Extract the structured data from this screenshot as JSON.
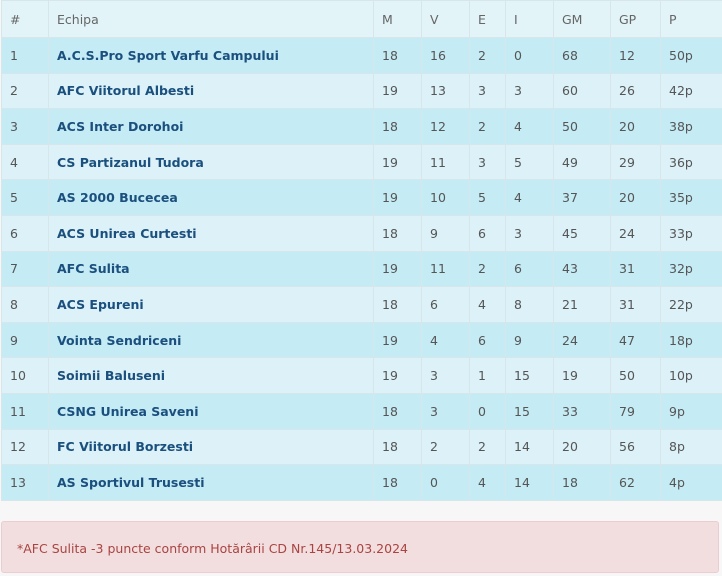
{
  "headers": [
    "#",
    "Echipa",
    "M",
    "V",
    "E",
    "I",
    "GM",
    "GP",
    "P"
  ],
  "rows": [
    [
      "1",
      "A.C.S.Pro Sport Varfu Campului",
      "18",
      "16",
      "2",
      "0",
      "68",
      "12",
      "50p"
    ],
    [
      "2",
      "AFC Viitorul Albesti",
      "19",
      "13",
      "3",
      "3",
      "60",
      "26",
      "42p"
    ],
    [
      "3",
      "ACS Inter Dorohoi",
      "18",
      "12",
      "2",
      "4",
      "50",
      "20",
      "38p"
    ],
    [
      "4",
      "CS Partizanul Tudora",
      "19",
      "11",
      "3",
      "5",
      "49",
      "29",
      "36p"
    ],
    [
      "5",
      "AS 2000 Bucecea",
      "19",
      "10",
      "5",
      "4",
      "37",
      "20",
      "35p"
    ],
    [
      "6",
      "ACS Unirea Curtesti",
      "18",
      "9",
      "6",
      "3",
      "45",
      "24",
      "33p"
    ],
    [
      "7",
      "AFC Sulita",
      "19",
      "11",
      "2",
      "6",
      "43",
      "31",
      "32p"
    ],
    [
      "8",
      "ACS Epureni",
      "18",
      "6",
      "4",
      "8",
      "21",
      "31",
      "22p"
    ],
    [
      "9",
      "Vointa Sendriceni",
      "19",
      "4",
      "6",
      "9",
      "24",
      "47",
      "18p"
    ],
    [
      "10",
      "Soimii Baluseni",
      "19",
      "3",
      "1",
      "15",
      "19",
      "50",
      "10p"
    ],
    [
      "11",
      "CSNG Unirea Saveni",
      "18",
      "3",
      "0",
      "15",
      "33",
      "79",
      "9p"
    ],
    [
      "12",
      "FC Viitorul Borzesti",
      "18",
      "2",
      "2",
      "14",
      "20",
      "56",
      "8p"
    ],
    [
      "13",
      "AS Sportivul Trusesti",
      "18",
      "0",
      "4",
      "14",
      "18",
      "62",
      "4p"
    ]
  ],
  "note": "*AFC Sulita -3 puncte conform Hotărârii CD Nr.145/13.03.2024",
  "colors": {
    "row_odd": "#c5ebf5",
    "row_even": "#dcf2f8",
    "team_text": "#1a4f7e",
    "note_bg": "#f2dede",
    "note_text": "#a94442"
  }
}
